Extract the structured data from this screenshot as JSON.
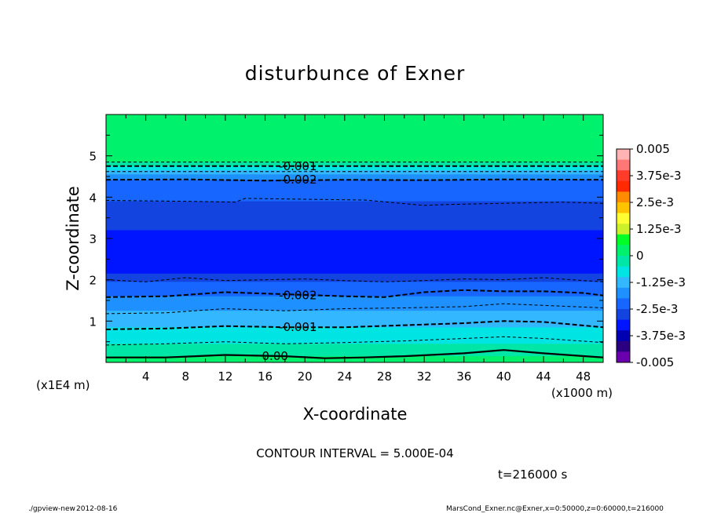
{
  "chart_data": {
    "type": "heatmap",
    "title": "disturbunce of Exner",
    "xlabel": "X-coordinate",
    "ylabel": "Z-coordinate",
    "x_unit_label": "(x1000 m)",
    "y_unit_label": "(x1E4 m)",
    "xlim": [
      0,
      50
    ],
    "ylim": [
      0,
      6
    ],
    "x_ticks": [
      4,
      8,
      12,
      16,
      20,
      24,
      28,
      32,
      36,
      40,
      44,
      48
    ],
    "y_ticks": [
      1,
      2,
      3,
      4,
      5
    ],
    "colorbar": {
      "min": -0.005,
      "max": 0.005,
      "labels": [
        "0.005",
        "3.75e-3",
        "2.5e-3",
        "1.25e-3",
        "0",
        "-1.25e-3",
        "-2.5e-3",
        "-3.75e-3",
        "-0.005"
      ],
      "colors": [
        "#ffb3b3",
        "#ff7777",
        "#ff3b2a",
        "#ff2a00",
        "#ff8c00",
        "#ffc400",
        "#ffff33",
        "#ccf02a",
        "#00ff27",
        "#00f26c",
        "#00e6a6",
        "#00e4e4",
        "#33b8ff",
        "#1f90ff",
        "#1666ff",
        "#1444e0",
        "#0015ff",
        "#0000b3",
        "#2a0080",
        "#6a00ad"
      ]
    },
    "fill_levels": [
      {
        "z_top": 6.0,
        "value": 0.0002
      },
      {
        "z_top": 4.85,
        "value": -0.00025
      },
      {
        "z_top": 4.75,
        "value": -0.0007
      },
      {
        "z_top": 4.65,
        "value": -0.0012
      },
      {
        "z_top": 4.55,
        "value": -0.0017
      },
      {
        "z_top": 4.42,
        "value": -0.0022
      },
      {
        "z_top": 3.9,
        "value": -0.0027
      },
      {
        "z_top": 3.2,
        "value": -0.0032
      },
      {
        "z_top": 2.15,
        "value": -0.0027
      },
      {
        "z_top": 1.95,
        "value": -0.0022
      },
      {
        "z_top": 1.6,
        "value": -0.0017
      },
      {
        "z_top": 1.25,
        "value": -0.0012
      },
      {
        "z_top": 0.85,
        "value": -0.0007
      },
      {
        "z_top": 0.45,
        "value": -0.0002
      },
      {
        "z_top": 0.15,
        "value": 0.0002
      }
    ],
    "contour_lines": [
      {
        "value": -0.0005,
        "x": [
          0,
          50
        ],
        "z": [
          4.85,
          4.85
        ],
        "style": "thin"
      },
      {
        "value": -0.001,
        "x": [
          0,
          50
        ],
        "z": [
          4.75,
          4.75
        ],
        "style": "thick"
      },
      {
        "value": -0.0015,
        "x": [
          0,
          50
        ],
        "z": [
          4.62,
          4.62
        ],
        "style": "thin"
      },
      {
        "value": -0.002,
        "x": [
          0,
          8,
          16,
          24,
          32,
          40,
          50
        ],
        "z": [
          4.42,
          4.43,
          4.4,
          4.42,
          4.41,
          4.43,
          4.42
        ],
        "style": "thick"
      },
      {
        "value": -0.0025,
        "x": [
          0,
          8,
          13,
          14,
          20,
          26,
          32,
          34,
          40,
          46,
          50
        ],
        "z": [
          3.92,
          3.9,
          3.88,
          3.97,
          3.95,
          3.93,
          3.8,
          3.82,
          3.85,
          3.88,
          3.85
        ],
        "style": "thin"
      },
      {
        "value": -0.003,
        "x": [
          0,
          10,
          20,
          26,
          30,
          34,
          40,
          43,
          50
        ],
        "z": [
          3.1,
          3.18,
          3.2,
          3.25,
          3.28,
          3.12,
          3.05,
          3.12,
          3.2
        ],
        "style": "none"
      },
      {
        "value": -0.003,
        "x": [
          0,
          10,
          20,
          30,
          36,
          44,
          50
        ],
        "z": [
          2.18,
          2.12,
          2.15,
          2.22,
          2.15,
          2.18,
          2.12
        ],
        "style": "none"
      },
      {
        "value": -0.0025,
        "x": [
          0,
          4,
          8,
          12,
          16,
          20,
          24,
          28,
          32,
          36,
          40,
          44,
          48,
          50
        ],
        "z": [
          2.0,
          1.95,
          2.05,
          1.98,
          2.0,
          2.02,
          1.98,
          1.95,
          1.98,
          2.02,
          2.0,
          2.05,
          1.98,
          1.95
        ],
        "style": "thin"
      },
      {
        "value": -0.002,
        "x": [
          0,
          6,
          12,
          18,
          24,
          28,
          32,
          36,
          40,
          44,
          48,
          50
        ],
        "z": [
          1.58,
          1.6,
          1.7,
          1.65,
          1.6,
          1.58,
          1.7,
          1.75,
          1.72,
          1.72,
          1.68,
          1.62
        ],
        "style": "thick"
      },
      {
        "value": -0.0015,
        "x": [
          0,
          6,
          12,
          18,
          24,
          30,
          36,
          40,
          44,
          50
        ],
        "z": [
          1.18,
          1.2,
          1.3,
          1.25,
          1.3,
          1.32,
          1.35,
          1.42,
          1.38,
          1.32
        ],
        "style": "thin"
      },
      {
        "value": -0.001,
        "x": [
          0,
          6,
          12,
          18,
          24,
          30,
          36,
          40,
          44,
          50
        ],
        "z": [
          0.8,
          0.82,
          0.88,
          0.85,
          0.85,
          0.9,
          0.95,
          1.0,
          0.98,
          0.85
        ],
        "style": "thick"
      },
      {
        "value": -0.0005,
        "x": [
          0,
          6,
          12,
          18,
          24,
          30,
          36,
          40,
          44,
          50
        ],
        "z": [
          0.42,
          0.45,
          0.5,
          0.45,
          0.48,
          0.52,
          0.58,
          0.62,
          0.58,
          0.48
        ],
        "style": "thin"
      },
      {
        "value": 0.0,
        "x": [
          0,
          6,
          12,
          18,
          22,
          26,
          30,
          36,
          40,
          44,
          50
        ],
        "z": [
          0.12,
          0.12,
          0.18,
          0.15,
          0.1,
          0.12,
          0.15,
          0.22,
          0.3,
          0.22,
          0.12
        ],
        "style": "solid"
      }
    ],
    "contour_labels": [
      {
        "text": "-0.001",
        "x": 19.3,
        "z": 4.75
      },
      {
        "text": "-0.002",
        "x": 19.3,
        "z": 4.42
      },
      {
        "text": "-0.002",
        "x": 19.3,
        "z": 1.62
      },
      {
        "text": "-0.001",
        "x": 19.3,
        "z": 0.85
      },
      {
        "text": "0.00",
        "x": 17.0,
        "z": 0.15
      }
    ],
    "grid": false
  },
  "footer": {
    "contour_interval": "CONTOUR INTERVAL = 5.000E-04",
    "time": "t=216000 s",
    "program": "./gpview-new",
    "date": "2012-08-16",
    "source": "MarsCond_Exner.nc@Exner,x=0:50000,z=0:60000,t=216000"
  }
}
